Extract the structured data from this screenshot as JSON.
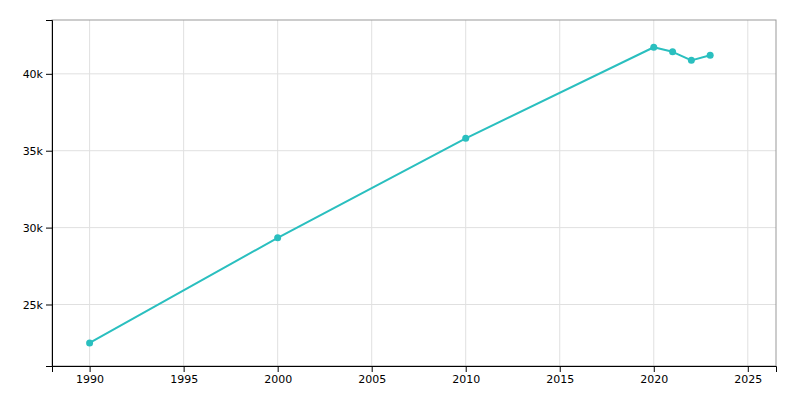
{
  "chart_data": {
    "type": "line",
    "x": [
      1990,
      2000,
      2010,
      2020,
      2021,
      2022,
      2023
    ],
    "values": [
      22500,
      29337,
      35805,
      41728,
      41432,
      40875,
      41206
    ],
    "color": "#2abfbf",
    "marker": "circle",
    "xlim": [
      1988.0,
      2026.5
    ],
    "ylim": [
      21000,
      43500
    ],
    "xticks": [
      1990,
      1995,
      2000,
      2005,
      2010,
      2015,
      2020,
      2025
    ],
    "yticks": [
      {
        "value": 25000,
        "label": "25k"
      },
      {
        "value": 30000,
        "label": "30k"
      },
      {
        "value": 35000,
        "label": "35k"
      },
      {
        "value": 40000,
        "label": "40k"
      }
    ],
    "grid": true
  }
}
